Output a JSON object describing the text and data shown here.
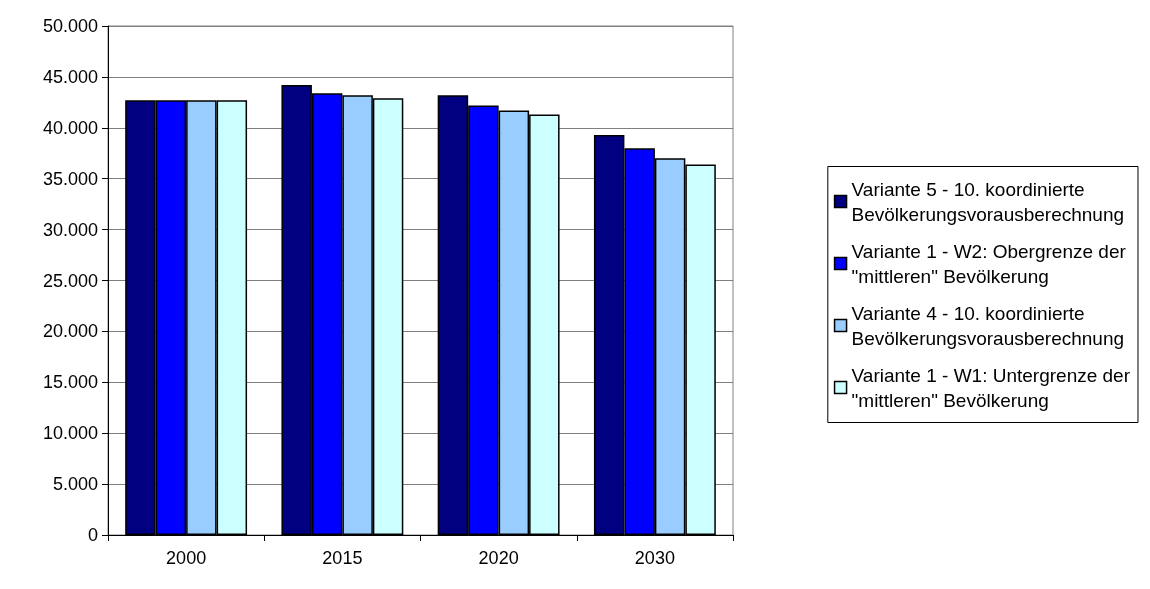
{
  "chart_data": {
    "type": "bar",
    "categories": [
      "2000",
      "2015",
      "2020",
      "2030"
    ],
    "series": [
      {
        "name": "Variante 5 - 10. koordinierte\nBevölkerungsvorausberechnung",
        "color": "#000080",
        "values": [
          42700,
          44200,
          43200,
          39300
        ]
      },
      {
        "name": "Variante 1 - W2: Obergrenze der\n\"mittleren\" Bevölkerung",
        "color": "#0000ff",
        "values": [
          42700,
          43400,
          42200,
          38000
        ]
      },
      {
        "name": "Variante 4 - 10. koordinierte\nBevölkerungsvorausberechnung",
        "color": "#99ccff",
        "values": [
          42700,
          43200,
          41700,
          37000
        ]
      },
      {
        "name": "Variante 1 - W1: Untergrenze der\n\"mittleren\" Bevölkerung",
        "color": "#ccffff",
        "values": [
          42700,
          42900,
          41300,
          36400
        ]
      }
    ],
    "ylim": [
      0,
      50000
    ],
    "yticks": [
      0,
      {
        "value": 5000,
        "label": "5.000"
      },
      {
        "value": 10000,
        "label": "10.000"
      },
      {
        "value": 15000,
        "label": "15.000"
      },
      {
        "value": 20000,
        "label": "20.000"
      },
      {
        "value": 25000,
        "label": "25.000"
      },
      {
        "value": 30000,
        "label": "30.000"
      },
      {
        "value": 35000,
        "label": "35.000"
      },
      {
        "value": 40000,
        "label": "40.000"
      },
      {
        "value": 45000,
        "label": "45.000"
      },
      {
        "value": 50000,
        "label": "50.000"
      }
    ],
    "grid": "y",
    "legend": "right"
  }
}
